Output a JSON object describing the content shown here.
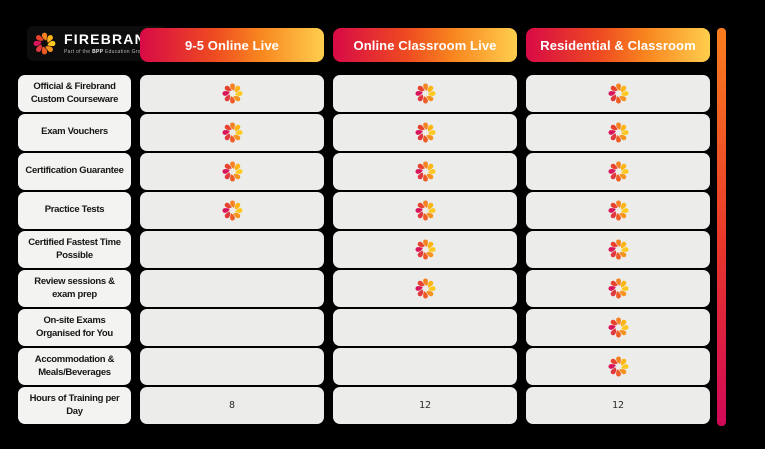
{
  "brand": {
    "name": "FIREBRAND",
    "tagline_prefix": "Part of the ",
    "tagline_bold": "BPP",
    "tagline_suffix": " Education Group"
  },
  "columns": [
    {
      "label": "9-5 Online Live"
    },
    {
      "label": "Online Classroom Live"
    },
    {
      "label": "Residential & Classroom"
    }
  ],
  "rows": [
    {
      "label": "Official & Firebrand Custom Courseware",
      "values": [
        true,
        true,
        true
      ]
    },
    {
      "label": "Exam Vouchers",
      "values": [
        true,
        true,
        true
      ]
    },
    {
      "label": "Certification Guarantee",
      "values": [
        true,
        true,
        true
      ]
    },
    {
      "label": "Practice Tests",
      "values": [
        true,
        true,
        true
      ]
    },
    {
      "label": "Certified Fastest Time Possible",
      "values": [
        false,
        true,
        true
      ]
    },
    {
      "label": "Review sessions & exam prep",
      "values": [
        false,
        true,
        true
      ]
    },
    {
      "label": "On-site Exams Organised for You",
      "values": [
        false,
        false,
        true
      ]
    },
    {
      "label": "Accommodation & Meals/Beverages",
      "values": [
        false,
        false,
        true
      ]
    },
    {
      "label": "Hours of Training per Day",
      "values": [
        "8",
        "12",
        "12"
      ]
    }
  ],
  "icons": {
    "check": "flame-swirl-icon",
    "logo": "firebrand-flame-icon"
  },
  "colors": {
    "background": "#000000",
    "cell": "#ECECEA",
    "label_cell": "#F3F3F1",
    "header_text": "#FFFFFF",
    "header_gradient": [
      "#D80A46",
      "#EE4A21",
      "#F8851F",
      "#FFCE4D"
    ],
    "accent_bar_gradient": [
      "#FA7D1E",
      "#E8362B",
      "#D00857"
    ],
    "flame_petals": [
      "#F58220",
      "#FDB515",
      "#FFC81E",
      "#F6921E",
      "#EF5B25",
      "#E03A3E",
      "#D9145B",
      "#E8432C"
    ]
  }
}
